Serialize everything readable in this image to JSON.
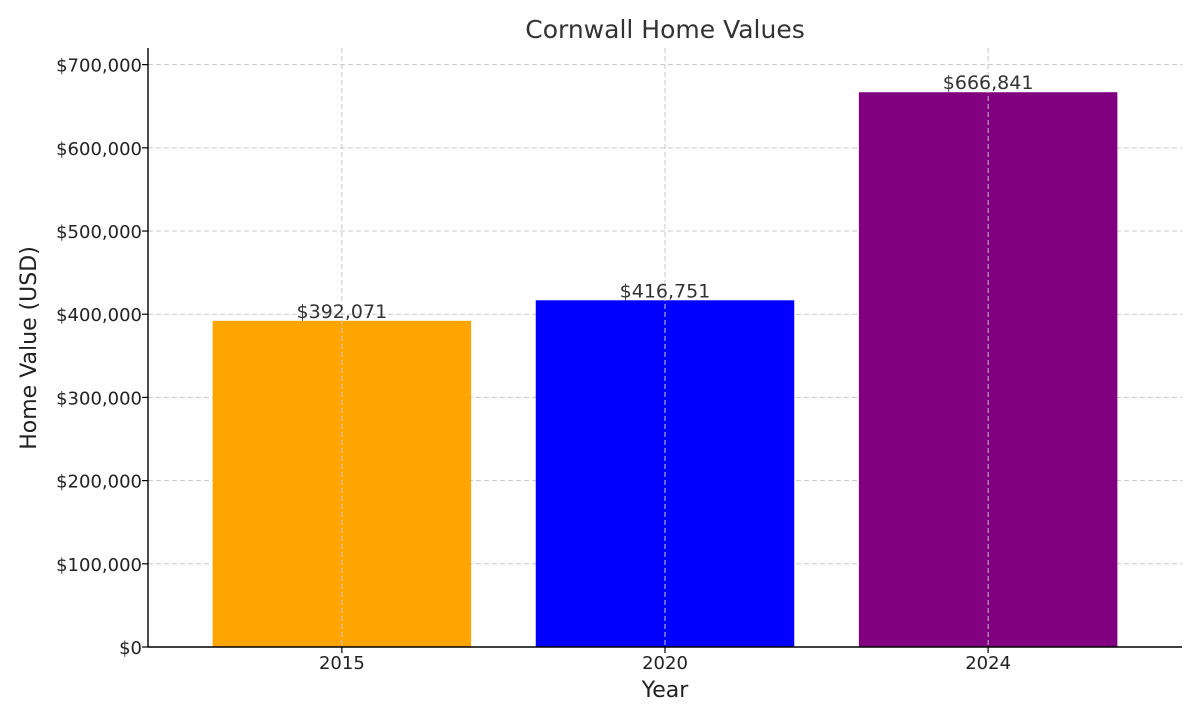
{
  "chart_data": {
    "type": "bar",
    "title": "Cornwall Home Values",
    "xlabel": "Year",
    "ylabel": "Home Value (USD)",
    "categories": [
      "2015",
      "2020",
      "2024"
    ],
    "values": [
      392071,
      416751,
      666841
    ],
    "value_labels": [
      "$392,071",
      "$416,751",
      "$666,841"
    ],
    "colors": [
      "#FFA500",
      "#0000FF",
      "#800080"
    ],
    "ylim": [
      0,
      720000
    ],
    "yticks": [
      0,
      100000,
      200000,
      300000,
      400000,
      500000,
      600000,
      700000
    ],
    "ytick_labels": [
      "$0",
      "$100,000",
      "$200,000",
      "$300,000",
      "$400,000",
      "$500,000",
      "$600,000",
      "$700,000"
    ],
    "grid": true,
    "legend": false
  }
}
